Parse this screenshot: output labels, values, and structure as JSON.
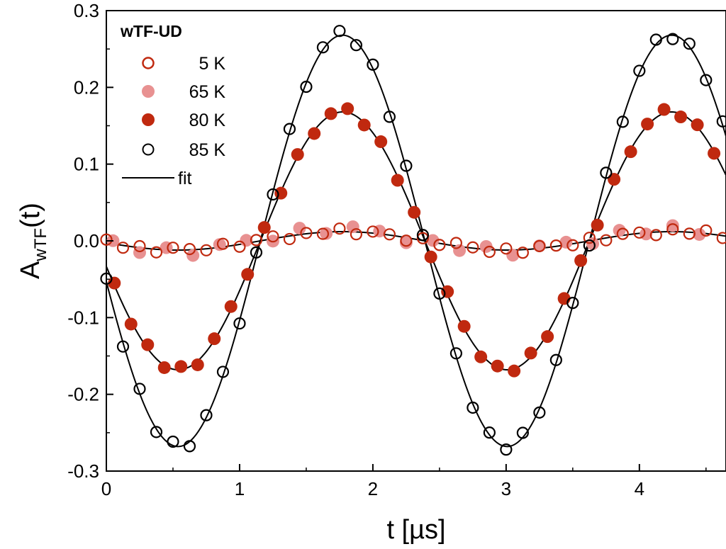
{
  "chart_data": {
    "type": "scatter",
    "title": "",
    "xlabel": "t [µs]",
    "ylabel_main": "A",
    "ylabel_sub": "wTF",
    "ylabel_tail": "(t)",
    "xlim": [
      0,
      4.65
    ],
    "ylim": [
      -0.3,
      0.3
    ],
    "xticks": [
      0,
      1,
      2,
      3,
      4
    ],
    "xtick_labels": [
      "0",
      "1",
      "2",
      "3",
      "4"
    ],
    "yticks": [
      -0.3,
      -0.2,
      -0.1,
      0.0,
      0.1,
      0.2,
      0.3
    ],
    "ytick_labels": [
      "-0.3",
      "-0.2",
      "-0.1",
      "0.0",
      "0.1",
      "0.2",
      "0.3"
    ],
    "grid": false,
    "legend_position": "top-left",
    "legend_title": "wTF-UD",
    "model": {
      "frequency_MHz": 0.405,
      "phase_rad": 0.2,
      "step_us": 0.125
    },
    "series": [
      {
        "name": "5 K",
        "label": "5 K",
        "marker": "open-circle",
        "color": "#c0290f",
        "amplitude": 0.012,
        "phase_shift": 0.0,
        "x_offset": 0.0,
        "count": 38,
        "noise": [
          0.004,
          -0.003,
          0.002,
          -0.004,
          0.003,
          0.001,
          -0.002,
          0.004,
          -0.003,
          0.002,
          0.003,
          -0.004,
          0.001,
          -0.002,
          0.004,
          -0.003,
          0.002,
          0.001,
          -0.004,
          0.003,
          -0.002,
          0.004,
          0.001,
          -0.003,
          0.002,
          -0.004,
          0.003,
          0.001,
          -0.002,
          0.004,
          -0.003,
          0.002,
          0.001,
          -0.004,
          0.003,
          -0.002,
          0.004,
          -0.003
        ]
      },
      {
        "name": "65 K",
        "label": "65 K",
        "marker": "filled-circle",
        "color": "#e89191",
        "amplitude": 0.014,
        "phase_shift": 0.1,
        "x_offset": 0.05,
        "count": 23,
        "noise": [
          0.006,
          -0.004,
          0.005,
          -0.006,
          0.004,
          0.003,
          -0.005,
          0.006,
          -0.004,
          0.005,
          0.003,
          -0.006,
          0.004,
          -0.003,
          0.006,
          -0.005,
          0.004,
          0.003,
          -0.006,
          0.005,
          -0.004,
          0.006,
          -0.003
        ]
      },
      {
        "name": "80 K",
        "label": "80 K",
        "marker": "filled-circle",
        "color": "#c0290f",
        "amplitude": 0.168,
        "phase_shift": 0.0,
        "x_offset": 0.06,
        "count": 37,
        "noise": [
          0.003,
          -0.004,
          0.005,
          -0.003,
          0.004,
          -0.005,
          0.002,
          0.004,
          -0.003,
          0.005,
          -0.002,
          0.003,
          -0.004,
          0.002,
          0.005,
          -0.003,
          0.004,
          -0.005,
          0.003,
          -0.002,
          0.004,
          0.003,
          -0.004,
          0.002,
          -0.003,
          0.005,
          -0.004,
          0.003,
          0.002,
          -0.005,
          0.004,
          -0.003,
          0.002,
          0.005,
          -0.004,
          0.003,
          -0.002
        ]
      },
      {
        "name": "85 K",
        "label": "85 K",
        "marker": "open-circle",
        "color": "#000000",
        "amplitude": 0.268,
        "phase_shift": 0.0,
        "x_offset": 0.0,
        "count": 38,
        "noise": [
          0.004,
          -0.005,
          0.006,
          -0.004,
          0.005,
          -0.006,
          0.003,
          0.005,
          -0.004,
          0.006,
          -0.003,
          0.004,
          -0.005,
          0.003,
          0.006,
          -0.004,
          0.005,
          -0.006,
          0.004,
          -0.003,
          0.005,
          0.004,
          -0.005,
          0.003,
          -0.004,
          0.006,
          -0.005,
          0.004,
          0.003,
          -0.006,
          0.005,
          -0.004,
          0.003,
          0.006,
          -0.005,
          0.004,
          -0.003,
          0.005
        ]
      }
    ],
    "fits": [
      {
        "name": "fit",
        "amplitude": 0.012,
        "phase_shift": 0.0
      },
      {
        "name": "fit",
        "amplitude": 0.168,
        "phase_shift": 0.0
      },
      {
        "name": "fit",
        "amplitude": 0.268,
        "phase_shift": 0.0
      }
    ],
    "fit_legend_label": "fit"
  }
}
